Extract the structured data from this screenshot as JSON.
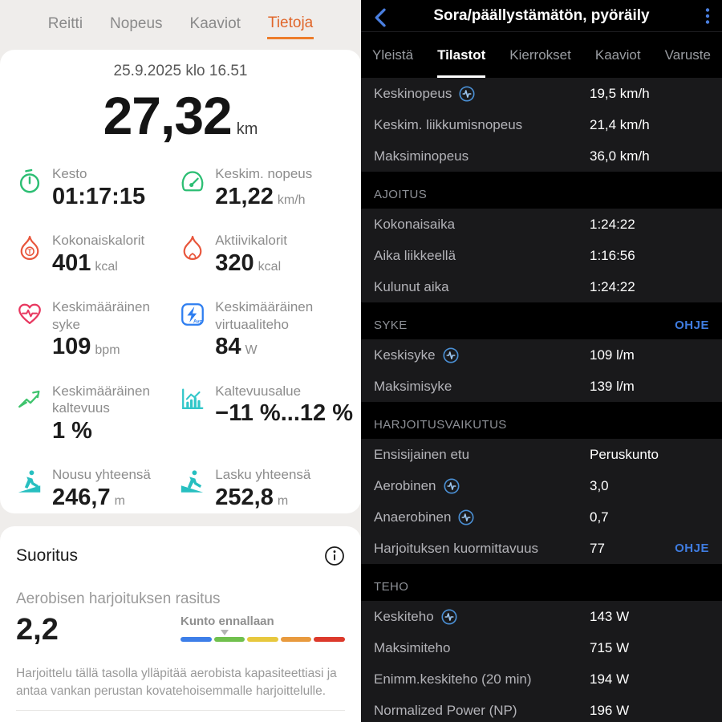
{
  "left": {
    "tabs": [
      {
        "label": "Reitti",
        "active": false
      },
      {
        "label": "Nopeus",
        "active": false
      },
      {
        "label": "Kaaviot",
        "active": false
      },
      {
        "label": "Tietoja",
        "active": true
      }
    ],
    "accent_color": "#ed7d2b",
    "date": "25.9.2025 klo 16.51",
    "distance": {
      "value": "27,32",
      "unit": "km"
    },
    "stats": [
      {
        "icon": "stopwatch-icon",
        "color": "#2cbe73",
        "label": "Kesto",
        "value": "01:17:15",
        "unit": ""
      },
      {
        "icon": "speedometer-icon",
        "color": "#2cbe73",
        "label": "Keskim. nopeus",
        "value": "21,22",
        "unit": "km/h"
      },
      {
        "icon": "total-calories-icon",
        "color": "#e8563c",
        "label": "Kokonaiskalorit",
        "value": "401",
        "unit": "kcal"
      },
      {
        "icon": "active-calories-icon",
        "color": "#e8563c",
        "label": "Aktiivikalorit",
        "value": "320",
        "unit": "kcal"
      },
      {
        "icon": "heart-rate-icon",
        "color": "#e8375f",
        "label": "Keskimääräinen syke",
        "value": "109",
        "unit": "bpm"
      },
      {
        "icon": "virtual-power-icon",
        "color": "#2e7ef0",
        "label": "Keskimääräinen virtuaaliteho",
        "value": "84",
        "unit": "W"
      },
      {
        "icon": "gradient-icon",
        "color": "#3fc46d",
        "label": "Keskimääräinen kaltevuus",
        "value": "1 %",
        "unit": ""
      },
      {
        "icon": "gradient-range-icon",
        "color": "#32c7c9",
        "label": "Kaltevuusalue",
        "value": "−11 %...12 %",
        "unit": ""
      },
      {
        "icon": "ascent-icon",
        "color": "#27bfc0",
        "label": "Nousu yhteensä",
        "value": "246,7",
        "unit": "m"
      },
      {
        "icon": "descent-icon",
        "color": "#27bfc0",
        "label": "Lasku yhteensä",
        "value": "252,8",
        "unit": "m"
      }
    ],
    "performance": {
      "title": "Suoritus",
      "subtitle": "Aerobisen harjoituksen rasitus",
      "value": "2,2",
      "scale_label": "Kunto ennallaan",
      "scale_colors": [
        "#3d7ee8",
        "#70c04d",
        "#e7c83e",
        "#e89a3e",
        "#dc392b"
      ],
      "marker_position_pct": 27,
      "description": "Harjoittelu tällä tasolla ylläpitää aerobista kapasiteettiasi ja antaa vankan perustan kovatehoisemmalle harjoittelulle."
    }
  },
  "right": {
    "title": "Sora/päällystämätön, pyöräily",
    "accent_color": "#3f7ce0",
    "tabs": [
      {
        "label": "Yleistä",
        "active": false
      },
      {
        "label": "Tilastot",
        "active": true
      },
      {
        "label": "Kierrokset",
        "active": false
      },
      {
        "label": "Kaaviot",
        "active": false
      },
      {
        "label": "Varuste",
        "active": false
      }
    ],
    "sections": [
      {
        "title": "",
        "rows": [
          {
            "label": "Keskinopeus",
            "has_icon": true,
            "value": "19,5 km/h"
          },
          {
            "label": "Keskim. liikkumisnopeus",
            "value": "21,4 km/h"
          },
          {
            "label": "Maksiminopeus",
            "value": "36,0 km/h"
          }
        ]
      },
      {
        "title": "AJOITUS",
        "rows": [
          {
            "label": "Kokonaisaika",
            "value": "1:24:22"
          },
          {
            "label": "Aika liikkeellä",
            "value": "1:16:56"
          },
          {
            "label": "Kulunut aika",
            "value": "1:24:22"
          }
        ]
      },
      {
        "title": "SYKE",
        "link": "OHJE",
        "rows": [
          {
            "label": "Keskisyke",
            "has_icon": true,
            "value": "109 l/m"
          },
          {
            "label": "Maksimisyke",
            "value": "139 l/m"
          }
        ]
      },
      {
        "title": "HARJOITUSVAIKUTUS",
        "rows": [
          {
            "label": "Ensisijainen etu",
            "value": "Peruskunto"
          },
          {
            "label": "Aerobinen",
            "has_icon": true,
            "value": "3,0"
          },
          {
            "label": "Anaerobinen",
            "has_icon": true,
            "value": "0,7"
          },
          {
            "label": "Harjoituksen kuormittavuus",
            "value": "77",
            "link": "OHJE"
          }
        ]
      },
      {
        "title": "TEHO",
        "rows": [
          {
            "label": "Keskiteho",
            "has_icon": true,
            "value": "143 W"
          },
          {
            "label": "Maksimiteho",
            "value": "715 W"
          },
          {
            "label": "Enimm.keskiteho (20 min)",
            "value": "194 W"
          },
          {
            "label": "Normalized Power (NP)",
            "value": "196 W"
          }
        ]
      }
    ]
  }
}
